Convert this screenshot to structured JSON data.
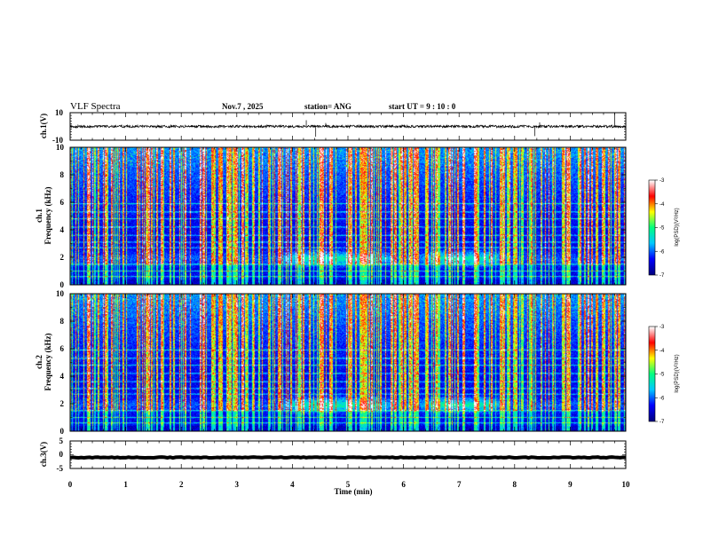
{
  "header": {
    "title": "VLF Spectra",
    "date": "Nov.7  , 2025",
    "station": "station= ANG",
    "start_ut": "start  UT  =   9  : 10 : 0"
  },
  "chart_data": [
    {
      "type": "line",
      "name": "ch1-waveform",
      "ylabel": "ch.1(V)",
      "ylim": [
        -10,
        10
      ],
      "yticklabels": [
        "10",
        "-10"
      ],
      "baseline": 0,
      "noise_amplitude": 0.9,
      "spikes": [
        {
          "t": 4.25,
          "v": 4.5
        },
        {
          "t": 4.42,
          "v": -7.5
        },
        {
          "t": 4.6,
          "v": 2.5
        },
        {
          "t": 8.36,
          "v": -7.0
        },
        {
          "t": 8.45,
          "v": 3.0
        },
        {
          "t": 9.8,
          "v": 10.0
        }
      ]
    },
    {
      "type": "heatmap",
      "name": "ch1-spectrogram",
      "ylabel_line1": "ch.1",
      "ylabel_line2": "Frequency  (kHz)",
      "ylim": [
        0,
        10
      ],
      "yticklabels": [
        "0",
        "2",
        "4",
        "6",
        "8",
        "10"
      ],
      "enhanced_band_khz": [
        1.2,
        2.6
      ],
      "enhanced_intervals_min": [
        [
          3.7,
          5.9
        ],
        [
          6.2,
          7.9
        ]
      ],
      "horizontal_lines_khz": [
        0.6,
        1.0,
        1.5,
        2.7,
        3.1,
        3.6,
        4.2,
        4.8,
        5.3,
        5.9
      ]
    },
    {
      "type": "heatmap",
      "name": "ch2-spectrogram",
      "ylabel_line1": "ch.2",
      "ylabel_line2": "Frequency  (kHz)",
      "ylim": [
        0,
        10
      ],
      "yticklabels": [
        "0",
        "2",
        "4",
        "6",
        "8",
        "10"
      ],
      "enhanced_band_khz": [
        1.2,
        2.6
      ],
      "enhanced_intervals_min": [
        [
          3.7,
          5.9
        ],
        [
          6.2,
          7.9
        ]
      ],
      "horizontal_lines_khz": [
        0.6,
        1.0,
        1.5,
        2.7,
        3.1,
        3.6,
        4.2,
        4.8,
        5.3,
        5.9
      ]
    },
    {
      "type": "line",
      "name": "ch3-waveform",
      "ylabel": "ch.3(V)",
      "ylim": [
        -5,
        5
      ],
      "yticklabels": [
        "5",
        "0",
        "-5"
      ],
      "baseline": -1.0,
      "noise_amplitude": 0.15
    }
  ],
  "xaxis": {
    "label": "Time  (min)",
    "range": [
      0,
      10
    ],
    "ticklabels": [
      "0",
      "1",
      "2",
      "3",
      "4",
      "5",
      "6",
      "7",
      "8",
      "9",
      "10"
    ]
  },
  "colorbar": {
    "label": "log(PSD)(V²/Hz)",
    "range": [
      -7,
      -3
    ],
    "ticklabels": [
      "-3",
      "-4",
      "-5",
      "-6",
      "-7"
    ],
    "stops": [
      "#000080",
      "#0000ff",
      "#00c8ff",
      "#00ff80",
      "#ffff00",
      "#ff0000",
      "#ffffff"
    ]
  }
}
